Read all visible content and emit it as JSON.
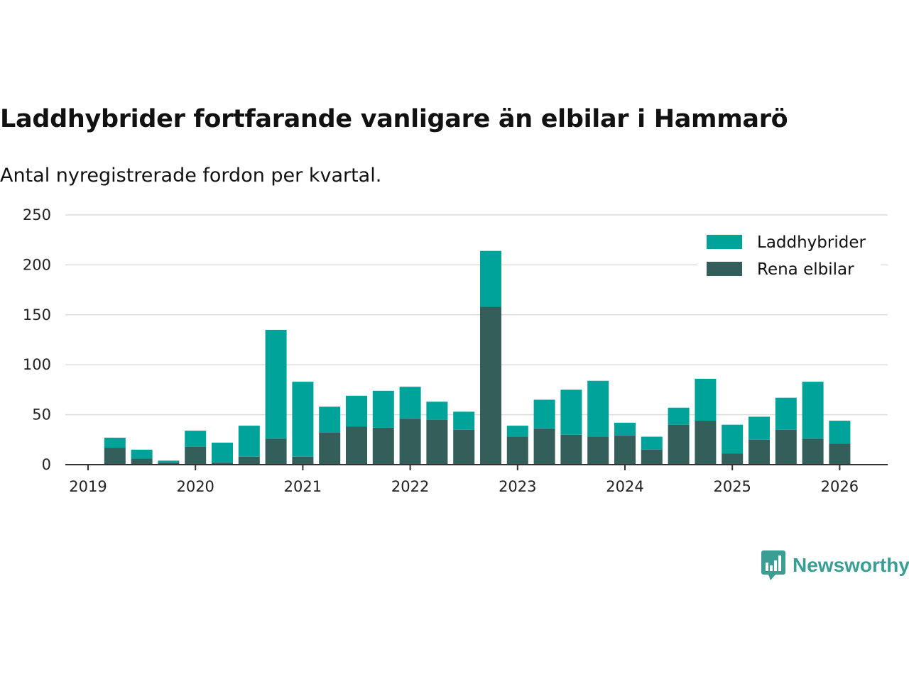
{
  "chart_data": {
    "type": "bar",
    "stacked": true,
    "title": "Laddhybrider fortfarande vanligare än elbilar i Hammarö",
    "subtitle": "Antal nyregistrerade fordon per kvartal.",
    "xlabel": "",
    "ylabel": "",
    "ylim": [
      0,
      250
    ],
    "yticks": [
      0,
      50,
      100,
      150,
      200,
      250
    ],
    "xtick_labels": [
      "2019",
      "2020",
      "2021",
      "2022",
      "2023",
      "2024",
      "2025",
      "2026"
    ],
    "categories": [
      "2019 Q1",
      "2019 Q2",
      "2019 Q3",
      "2019 Q4",
      "2020 Q1",
      "2020 Q2",
      "2020 Q3",
      "2020 Q4",
      "2021 Q1",
      "2021 Q2",
      "2021 Q3",
      "2021 Q4",
      "2022 Q1",
      "2022 Q2",
      "2022 Q3",
      "2022 Q4",
      "2023 Q1",
      "2023 Q2",
      "2023 Q3",
      "2023 Q4",
      "2024 Q1",
      "2024 Q2",
      "2024 Q3",
      "2024 Q4",
      "2025 Q1",
      "2025 Q2",
      "2025 Q3",
      "2025 Q4"
    ],
    "series": [
      {
        "name": "Rena elbilar",
        "color": "#335e5a",
        "values": [
          17,
          6,
          2,
          18,
          2,
          8,
          26,
          8,
          32,
          38,
          37,
          46,
          45,
          35,
          158,
          28,
          36,
          30,
          28,
          29,
          15,
          40,
          44,
          11,
          25,
          35,
          26,
          21
        ]
      },
      {
        "name": "Laddhybrider",
        "color": "#00a39a",
        "values": [
          10,
          9,
          2,
          16,
          20,
          31,
          109,
          75,
          26,
          31,
          37,
          32,
          18,
          18,
          56,
          11,
          29,
          45,
          56,
          13,
          13,
          17,
          42,
          29,
          23,
          32,
          57,
          23
        ]
      }
    ],
    "legend": {
      "position": "top-right",
      "items": [
        "Laddhybrider",
        "Rena elbilar"
      ]
    }
  },
  "brand": {
    "name": "Newsworthy",
    "color": "#3a9e94"
  }
}
